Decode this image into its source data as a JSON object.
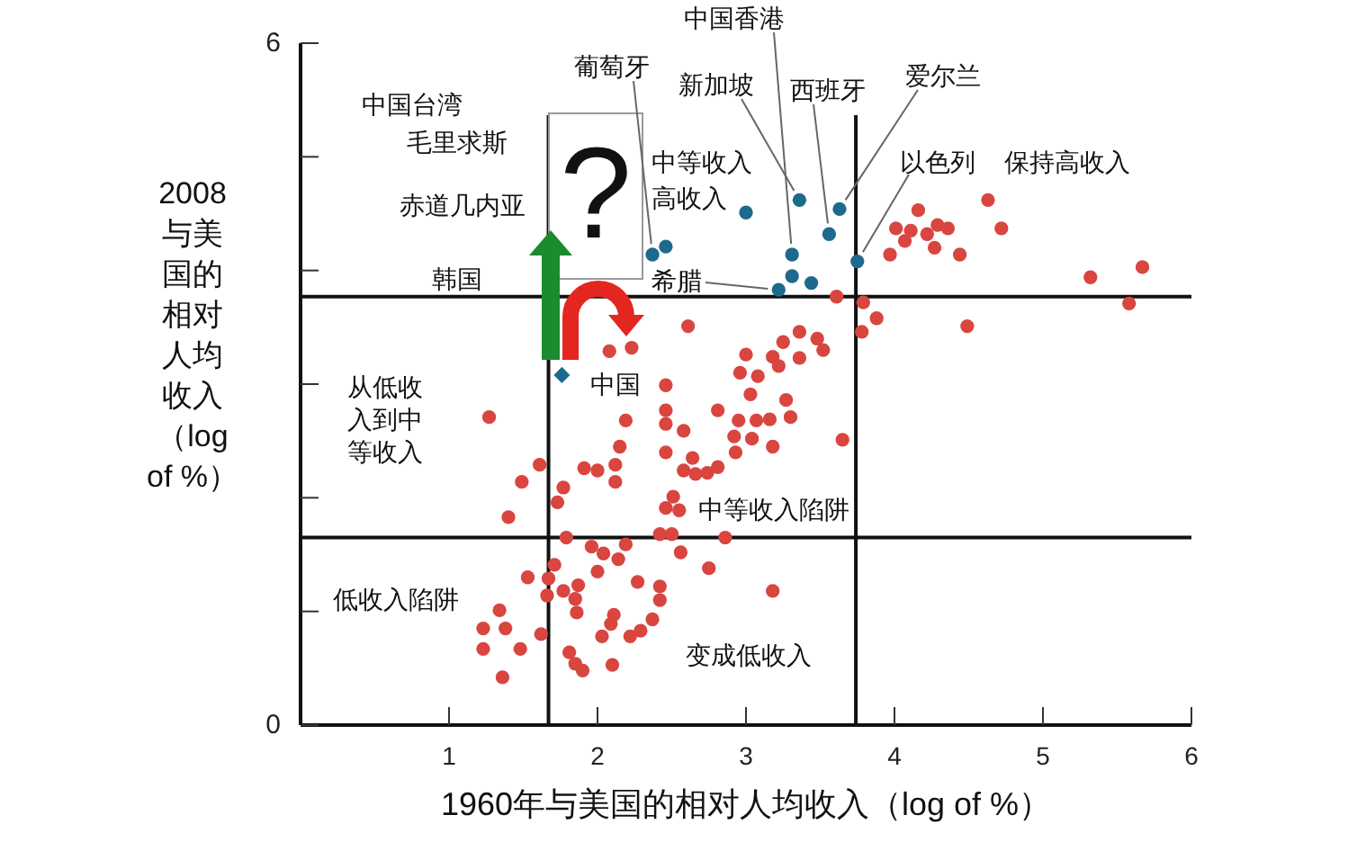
{
  "chart_data": {
    "type": "scatter",
    "xlabel": "1960年与美国的相对人均收入（log of %）",
    "ylabel": "2008与美国的相对人均收入（log of %）",
    "xlim": [
      0,
      6
    ],
    "ylim": [
      0,
      6
    ],
    "xticks": [
      1,
      2,
      3,
      4,
      5,
      6
    ],
    "yticks": [
      0,
      {
        "value": 1,
        "label": null
      },
      {
        "value": 2,
        "label": null
      },
      {
        "value": 3,
        "label": null
      },
      {
        "value": 4,
        "label": null
      },
      {
        "value": 5,
        "label": null
      },
      6
    ],
    "marker": "circle",
    "series": [
      {
        "color": "#d9453f",
        "x": [
          4.16,
          4.01,
          4.11,
          4.07,
          4.22,
          4.29,
          4.36,
          4.27,
          3.97,
          4.44,
          4.63,
          4.72,
          5.32,
          5.67,
          5.58,
          4.49,
          3.61,
          3.79,
          3.88,
          3.78,
          2.61,
          3.36,
          3.25,
          3.48,
          3.52,
          3.0,
          3.18,
          3.22,
          3.36,
          2.96,
          3.08,
          3.03,
          3.27,
          2.81,
          3.3,
          2.95,
          3.07,
          3.16,
          2.58,
          2.92,
          3.04,
          3.18,
          3.65,
          2.93,
          2.64,
          2.58,
          2.66,
          2.74,
          2.81,
          2.86,
          2.75,
          3.18,
          2.46,
          2.08,
          2.23,
          1.27,
          2.46,
          2.46,
          2.19,
          2.15,
          2.46,
          1.61,
          1.91,
          2.0,
          2.12,
          2.12,
          1.49,
          1.77,
          1.73,
          2.51,
          2.46,
          2.55,
          1.4,
          1.79,
          2.42,
          2.5,
          1.96,
          2.04,
          2.19,
          2.14,
          2.56,
          1.71,
          1.67,
          1.53,
          2.0,
          1.66,
          1.77,
          1.87,
          1.85,
          2.27,
          2.42,
          2.42,
          1.86,
          2.11,
          2.09,
          2.37,
          1.34,
          1.23,
          1.38,
          2.29,
          2.22,
          2.03,
          1.62,
          1.23,
          1.48,
          1.81,
          1.85,
          1.9,
          2.1,
          1.36
        ],
        "values": [
          4.53,
          4.37,
          4.35,
          4.26,
          4.32,
          4.4,
          4.37,
          4.2,
          4.14,
          4.14,
          4.62,
          4.37,
          3.94,
          4.03,
          3.71,
          3.51,
          3.77,
          3.72,
          3.58,
          3.46,
          3.51,
          3.46,
          3.37,
          3.4,
          3.3,
          3.26,
          3.24,
          3.16,
          3.23,
          3.1,
          3.07,
          2.91,
          2.86,
          2.77,
          2.71,
          2.68,
          2.68,
          2.69,
          2.59,
          2.54,
          2.52,
          2.45,
          2.51,
          2.4,
          2.35,
          2.24,
          2.21,
          2.22,
          2.27,
          1.65,
          1.38,
          1.18,
          2.99,
          3.29,
          3.32,
          2.71,
          2.77,
          2.65,
          2.68,
          2.45,
          2.4,
          2.29,
          2.26,
          2.24,
          2.29,
          2.14,
          2.14,
          2.09,
          1.96,
          2.01,
          1.91,
          1.89,
          1.83,
          1.65,
          1.68,
          1.68,
          1.57,
          1.51,
          1.59,
          1.46,
          1.52,
          1.41,
          1.29,
          1.3,
          1.35,
          1.14,
          1.18,
          1.23,
          1.11,
          1.26,
          1.22,
          1.1,
          0.99,
          0.97,
          0.89,
          0.93,
          1.01,
          0.85,
          0.85,
          0.83,
          0.78,
          0.78,
          0.8,
          0.67,
          0.67,
          0.64,
          0.54,
          0.48,
          0.53,
          0.42
        ]
      },
      {
        "color": "#1e6a8d",
        "x": [
          3.0,
          3.36,
          3.63,
          3.56,
          3.31,
          3.75,
          3.31,
          3.44,
          3.22,
          2.37,
          2.46
        ],
        "values": [
          4.51,
          4.62,
          4.54,
          4.32,
          4.14,
          4.08,
          3.95,
          3.89,
          3.83,
          4.14,
          4.21
        ]
      },
      {
        "name": "中国",
        "color": "#1e6a8d",
        "marker": "diamond",
        "x": [
          1.76
        ],
        "values": [
          3.08
        ]
      }
    ],
    "ref_lines": [
      {
        "axis": "x",
        "value": 1.67
      },
      {
        "axis": "x",
        "value": 3.74
      },
      {
        "axis": "y",
        "value": 3.77
      },
      {
        "axis": "y",
        "value": 1.65
      }
    ],
    "annotations": [
      {
        "text": "中国香港",
        "x": 3.31,
        "y": 4.14
      },
      {
        "text": "葡萄牙",
        "x": 2.37,
        "y": 4.14
      },
      {
        "text": "新加坡",
        "x": 3.36,
        "y": 4.62
      },
      {
        "text": "西班牙",
        "x": 3.56,
        "y": 4.32
      },
      {
        "text": "爱尔兰",
        "x": 3.63,
        "y": 4.54
      },
      {
        "text": "以色列",
        "x": 3.75,
        "y": 4.08
      },
      {
        "text": "希腊",
        "x": 3.22,
        "y": 3.83
      },
      "中国台湾",
      "毛里求斯",
      "赤道几内亚",
      "韩国",
      "?",
      "中等收入高收入",
      "保持高收入",
      "从低收入到中等收入",
      "中等收入陷阱",
      "低收入陷阱",
      "变成低收入"
    ]
  }
}
